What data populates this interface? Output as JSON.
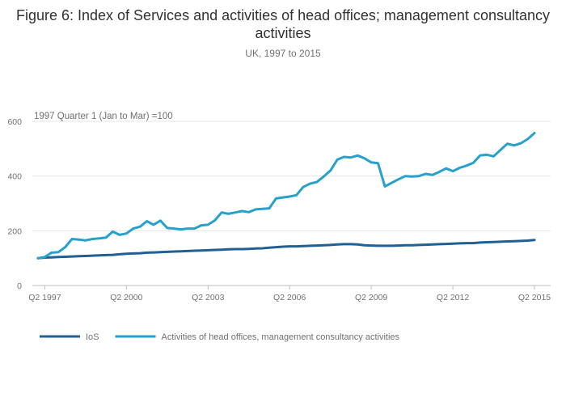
{
  "chart_data": {
    "type": "line",
    "title": "Figure 6: Index of Services and activities of head offices; management consultancy activities",
    "subtitle": "UK, 1997 to 2015",
    "ylabel": "1997 Quarter 1 (Jan to Mar) =100",
    "xlabel": "",
    "ylim": [
      0,
      600
    ],
    "yticks": [
      0,
      200,
      400,
      600
    ],
    "grid": "horizontal",
    "legend_position": "bottom-left",
    "x_ticks": [
      "Q2 1997",
      "Q2 2000",
      "Q2 2003",
      "Q2 2006",
      "Q2 2009",
      "Q2 2012",
      "Q2 2015"
    ],
    "x": [
      "Q1 1997",
      "Q2 1997",
      "Q3 1997",
      "Q4 1997",
      "Q1 1998",
      "Q2 1998",
      "Q3 1998",
      "Q4 1998",
      "Q1 1999",
      "Q2 1999",
      "Q3 1999",
      "Q4 1999",
      "Q1 2000",
      "Q2 2000",
      "Q3 2000",
      "Q4 2000",
      "Q1 2001",
      "Q2 2001",
      "Q3 2001",
      "Q4 2001",
      "Q1 2002",
      "Q2 2002",
      "Q3 2002",
      "Q4 2002",
      "Q1 2003",
      "Q2 2003",
      "Q3 2003",
      "Q4 2003",
      "Q1 2004",
      "Q2 2004",
      "Q3 2004",
      "Q4 2004",
      "Q1 2005",
      "Q2 2005",
      "Q3 2005",
      "Q4 2005",
      "Q1 2006",
      "Q2 2006",
      "Q3 2006",
      "Q4 2006",
      "Q1 2007",
      "Q2 2007",
      "Q3 2007",
      "Q4 2007",
      "Q1 2008",
      "Q2 2008",
      "Q3 2008",
      "Q4 2008",
      "Q1 2009",
      "Q2 2009",
      "Q3 2009",
      "Q4 2009",
      "Q1 2010",
      "Q2 2010",
      "Q3 2010",
      "Q4 2010",
      "Q1 2011",
      "Q2 2011",
      "Q3 2011",
      "Q4 2011",
      "Q1 2012",
      "Q2 2012",
      "Q3 2012",
      "Q4 2012",
      "Q1 2013",
      "Q2 2013",
      "Q3 2013",
      "Q4 2013",
      "Q1 2014",
      "Q2 2014",
      "Q3 2014",
      "Q4 2014",
      "Q1 2015",
      "Q2 2015"
    ],
    "series": [
      {
        "name": "IoS",
        "color": "#206095",
        "values": [
          100,
          102,
          103,
          104,
          105,
          106,
          107,
          108,
          109,
          110,
          111,
          112,
          114,
          116,
          117,
          118,
          120,
          121,
          122,
          123,
          124,
          125,
          126,
          127,
          128,
          129,
          130,
          131,
          132,
          133,
          133,
          134,
          135,
          136,
          138,
          140,
          142,
          143,
          143,
          144,
          145,
          146,
          147,
          148,
          150,
          151,
          151,
          150,
          147,
          146,
          145,
          145,
          145,
          146,
          147,
          147,
          148,
          149,
          150,
          151,
          152,
          153,
          154,
          155,
          155,
          157,
          158,
          159,
          160,
          161,
          162,
          163,
          164,
          166
        ]
      },
      {
        "name": "Activities of head offices, management consultancy activities",
        "color": "#27a0cc",
        "values": [
          100,
          104,
          120,
          122,
          140,
          170,
          168,
          165,
          170,
          172,
          175,
          197,
          185,
          190,
          208,
          215,
          235,
          222,
          237,
          210,
          208,
          205,
          208,
          208,
          220,
          222,
          238,
          267,
          262,
          267,
          272,
          268,
          278,
          280,
          282,
          318,
          322,
          325,
          330,
          360,
          372,
          378,
          398,
          420,
          460,
          470,
          468,
          475,
          465,
          450,
          447,
          362,
          375,
          388,
          400,
          398,
          400,
          408,
          404,
          415,
          428,
          418,
          430,
          438,
          448,
          475,
          478,
          472,
          495,
          518,
          512,
          520,
          535,
          557
        ]
      }
    ]
  }
}
